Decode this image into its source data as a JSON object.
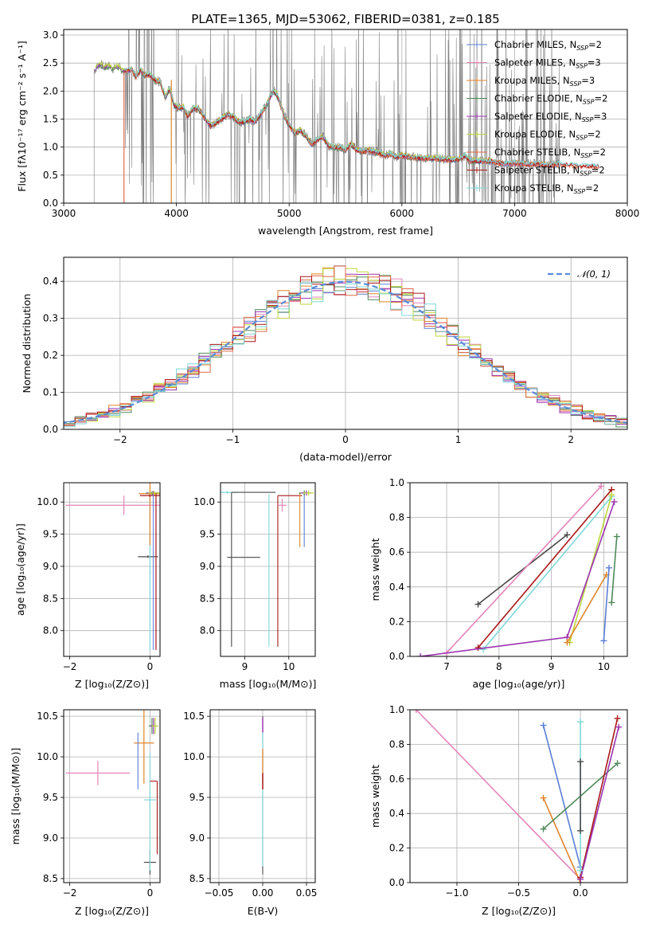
{
  "title": "PLATE=1365, MJD=53062, FIBERID=0381, z=0.185",
  "colors": {
    "chabrier_miles": "#5b7fd4",
    "salpeter_miles": "#e484b9",
    "kroupa_miles": "#e0852a",
    "chabrier_elodie": "#4f8a5a",
    "salpeter_elodie": "#9b34b0",
    "kroupa_elodie": "#bcd63a",
    "chabrier_stelib": "#e06a4a",
    "salpeter_stelib": "#a81818",
    "kroupa_stelib": "#7fd8d8",
    "data": "#7f7f7f",
    "grid": "#b0b0b0",
    "gauss": "#5b8bd4",
    "dark": "#4a4a4a"
  },
  "chart_data": [
    {
      "id": "spectrum",
      "type": "line",
      "title": "PLATE=1365, MJD=53062, FIBERID=0381, z=0.185",
      "xlabel": "wavelength [Angstrom, rest frame]",
      "ylabel": "Flux [fλ10⁻¹⁷ erg cm⁻² s⁻¹ A⁻¹]",
      "xlim": [
        3000,
        8000
      ],
      "ylim": [
        0,
        3.1
      ],
      "xticks": [
        "3000",
        "4000",
        "5000",
        "6000",
        "7000",
        "8000"
      ],
      "yticks": [
        "0.0",
        "0.5",
        "1.0",
        "1.5",
        "2.0",
        "2.5",
        "3.0"
      ],
      "legend_position": "top-right",
      "legend": [
        {
          "key": "chabrier_miles",
          "name": "Chabrier MILES, N",
          "sub": "SSP",
          "val": "=2"
        },
        {
          "key": "salpeter_miles",
          "name": "Salpeter MILES, N",
          "sub": "SSP",
          "val": "=3"
        },
        {
          "key": "kroupa_miles",
          "name": "Kroupa MILES, N",
          "sub": "SSP",
          "val": "=3"
        },
        {
          "key": "chabrier_elodie",
          "name": "Chabrier ELODIE, N",
          "sub": "SSP",
          "val": "=2"
        },
        {
          "key": "salpeter_elodie",
          "name": "Salpeter ELODIE, N",
          "sub": "SSP",
          "val": "=3"
        },
        {
          "key": "kroupa_elodie",
          "name": "Kroupa ELODIE, N",
          "sub": "SSP",
          "val": "=2"
        },
        {
          "key": "chabrier_stelib",
          "name": "Chabrier STELIB, N",
          "sub": "SSP",
          "val": "=2"
        },
        {
          "key": "salpeter_stelib",
          "name": "Salpeter STELIB, N",
          "sub": "SSP",
          "val": "=2"
        },
        {
          "key": "kroupa_stelib",
          "name": "Kroupa STELIB, N",
          "sub": "SSP",
          "val": "=2"
        }
      ],
      "model_x": [
        3280,
        3300,
        3330,
        3360,
        3400,
        3440,
        3480,
        3520,
        3560,
        3600,
        3640,
        3680,
        3720,
        3760,
        3800,
        3860,
        3900,
        3940,
        3980,
        4020,
        4060,
        4100,
        4150,
        4200,
        4260,
        4300,
        4340,
        4400,
        4450,
        4500,
        4550,
        4600,
        4650,
        4700,
        4750,
        4800,
        4860,
        4900,
        4960,
        5000,
        5050,
        5100,
        5150,
        5200,
        5260,
        5300,
        5350,
        5400,
        5450,
        5500,
        5550,
        5600,
        5650,
        5700,
        5750,
        5800,
        5850,
        5900,
        5950,
        6000,
        6100,
        6200,
        6300,
        6400,
        6500,
        6560,
        6600,
        6700,
        6800,
        6900,
        7000,
        7100,
        7200,
        7300,
        7400,
        7500,
        7600,
        7700,
        7750
      ],
      "model_y": [
        2.38,
        2.45,
        2.48,
        2.42,
        2.45,
        2.4,
        2.44,
        2.38,
        2.36,
        2.4,
        2.25,
        2.38,
        2.28,
        2.3,
        2.22,
        2.15,
        1.9,
        2.05,
        1.75,
        1.7,
        1.72,
        1.55,
        1.7,
        1.68,
        1.5,
        1.38,
        1.42,
        1.5,
        1.58,
        1.55,
        1.45,
        1.45,
        1.5,
        1.45,
        1.6,
        1.75,
        2.02,
        1.9,
        1.55,
        1.4,
        1.25,
        1.3,
        1.2,
        1.05,
        1.15,
        1.18,
        1.02,
        1.0,
        1.0,
        0.95,
        1.05,
        0.95,
        0.92,
        0.95,
        0.92,
        0.9,
        0.85,
        0.88,
        0.82,
        0.85,
        0.82,
        0.8,
        0.8,
        0.78,
        0.78,
        0.85,
        0.76,
        0.75,
        0.75,
        0.7,
        0.72,
        0.7,
        0.7,
        0.68,
        0.7,
        0.68,
        0.66,
        0.66,
        0.66
      ],
      "data_segments": [
        [
          3250,
          3510
        ],
        [
          3520,
          3960
        ],
        [
          3960,
          7400
        ]
      ],
      "data_start": 3270
    },
    {
      "id": "residuals",
      "type": "step",
      "xlabel": "(data-model)/error",
      "ylabel": "Normed distribution",
      "xlim": [
        -2.5,
        2.5
      ],
      "ylim": [
        0,
        0.465
      ],
      "xticks": [
        "−2",
        "−1",
        "0",
        "1",
        "2"
      ],
      "yticks": [
        "0.0",
        "0.1",
        "0.2",
        "0.3",
        "0.4"
      ],
      "legend": "𝒩(0, 1)",
      "bin_width": 0.1
    },
    {
      "id": "age_vs_Z",
      "type": "scatter",
      "xlabel": "Z [log₁₀(Z/Z⊙)]",
      "ylabel": "age  [log₁₀(age/yr)]",
      "xlim": [
        -2.15,
        0.25
      ],
      "ylim": [
        7.6,
        10.3
      ],
      "xticks": [
        "−2",
        "0"
      ],
      "yticks": [
        "8.0",
        "8.5",
        "9.0",
        "9.5",
        "10.0"
      ]
    },
    {
      "id": "age_vs_mass",
      "type": "scatter",
      "xlabel": "mass [log₁₀(M/M⊙)]",
      "ylabel": "",
      "xlim": [
        8.45,
        10.6
      ],
      "ylim": [
        7.6,
        10.3
      ],
      "xticks": [
        "9",
        "10"
      ],
      "yticks": [
        "8.0",
        "8.5",
        "9.0",
        "9.5",
        "10.0"
      ]
    },
    {
      "id": "massweight_vs_age",
      "type": "line",
      "xlabel": "age  [log₁₀(age/yr)]",
      "ylabel": "mass weight",
      "xlim": [
        6.3,
        10.45
      ],
      "ylim": [
        0,
        1.0
      ],
      "xticks": [
        "7",
        "8",
        "9",
        "10"
      ],
      "yticks": [
        "0.0",
        "0.2",
        "0.4",
        "0.6",
        "0.8",
        "1.0"
      ],
      "series": [
        {
          "key": "dark",
          "x": [
            7.6,
            9.3
          ],
          "y": [
            0.3,
            0.7
          ]
        },
        {
          "key": "salpeter_miles",
          "x": [
            7.0,
            9.95
          ],
          "y": [
            0.02,
            0.98
          ]
        },
        {
          "key": "salpeter_stelib",
          "x": [
            7.6,
            10.15
          ],
          "y": [
            0.05,
            0.96
          ]
        },
        {
          "key": "kroupa_stelib",
          "x": [
            7.7,
            10.15
          ],
          "y": [
            0.04,
            0.92
          ]
        },
        {
          "key": "kroupa_elodie",
          "x": [
            9.35,
            10.15
          ],
          "y": [
            0.08,
            0.93
          ]
        },
        {
          "key": "salpeter_elodie",
          "x": [
            6.5,
            9.3,
            10.2
          ],
          "y": [
            0.0,
            0.11,
            0.89
          ]
        },
        {
          "key": "kroupa_miles",
          "x": [
            9.3,
            10.05
          ],
          "y": [
            0.08,
            0.47
          ]
        },
        {
          "key": "chabrier_miles",
          "x": [
            10.0,
            10.1
          ],
          "y": [
            0.09,
            0.51
          ]
        },
        {
          "key": "chabrier_elodie",
          "x": [
            10.15,
            10.25
          ],
          "y": [
            0.31,
            0.69
          ]
        }
      ]
    },
    {
      "id": "mass_vs_Z",
      "type": "scatter",
      "xlabel": "Z [log₁₀(Z/Z⊙)]",
      "ylabel": "mass [log₁₀(M/M⊙)]",
      "xlim": [
        -2.15,
        0.25
      ],
      "ylim": [
        8.45,
        10.58
      ],
      "xticks": [
        "−2",
        "0"
      ],
      "yticks": [
        "8.5",
        "9.0",
        "9.5",
        "10.0",
        "10.5"
      ]
    },
    {
      "id": "mass_vs_ebv",
      "type": "scatter",
      "xlabel": "E(B-V)",
      "ylabel": "",
      "xlim": [
        -0.06,
        0.06
      ],
      "ylim": [
        8.45,
        10.58
      ],
      "xticks": [
        "−0.05",
        "0.00",
        "0.05"
      ],
      "yticks": [
        "8.5",
        "9.0",
        "9.5",
        "10.0",
        "10.5"
      ]
    },
    {
      "id": "massweight_vs_Z",
      "type": "line",
      "xlabel": "Z [log₁₀(Z/Z⊙)]",
      "ylabel": "mass weight",
      "xlim": [
        -1.38,
        0.38
      ],
      "ylim": [
        0,
        1.0
      ],
      "xticks": [
        "−1.0",
        "−0.5",
        "0.0"
      ],
      "yticks": [
        "0.0",
        "0.2",
        "0.4",
        "0.6",
        "0.8",
        "1.0"
      ],
      "series": [
        {
          "key": "salpeter_miles",
          "x": [
            -1.33,
            0.0
          ],
          "y": [
            1.0,
            0.02
          ]
        },
        {
          "key": "chabrier_miles",
          "x": [
            -0.3,
            0.0
          ],
          "y": [
            0.91,
            0.09
          ]
        },
        {
          "key": "kroupa_miles",
          "x": [
            -0.3,
            0.0
          ],
          "y": [
            0.49,
            0.0
          ]
        },
        {
          "key": "chabrier_elodie",
          "x": [
            -0.3,
            0.3
          ],
          "y": [
            0.31,
            0.69
          ]
        },
        {
          "key": "salpeter_stelib",
          "x": [
            0.0,
            0.3
          ],
          "y": [
            0.03,
            0.95
          ]
        },
        {
          "key": "salpeter_elodie",
          "x": [
            0.0,
            0.31
          ],
          "y": [
            0.02,
            0.9
          ]
        },
        {
          "key": "kroupa_stelib",
          "x": [
            0.0,
            0.0
          ],
          "y": [
            0.07,
            0.93
          ]
        },
        {
          "key": "dark",
          "x": [
            0.0,
            0.0
          ],
          "y": [
            0.3,
            0.7
          ]
        }
      ]
    }
  ]
}
